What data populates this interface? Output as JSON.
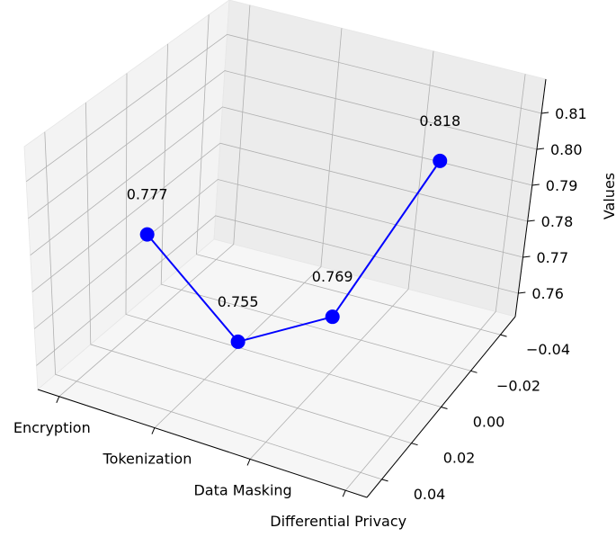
{
  "chart_data": {
    "type": "line",
    "projection": "3d",
    "title": "",
    "xlabel": "",
    "ylabel": "",
    "zlabel": "Values",
    "x_categories": [
      "Encryption",
      "Tokenization",
      "Data Masking",
      "Differential Privacy"
    ],
    "y_ticks": [
      "0.04",
      "0.02",
      "0.00",
      "−0.02",
      "−0.04"
    ],
    "z_ticks": [
      "0.81",
      "0.80",
      "0.79",
      "0.78",
      "0.77",
      "0.76"
    ],
    "series": [
      {
        "x": [
          "Encryption",
          "Tokenization",
          "Data Masking",
          "Differential Privacy"
        ],
        "y": [
          0,
          0,
          0,
          0
        ],
        "z": [
          0.777,
          0.755,
          0.769,
          0.818
        ],
        "labels": [
          "0.777",
          "0.755",
          "0.769",
          "0.818"
        ]
      }
    ],
    "zlim": [
      0.755,
      0.818
    ],
    "ylim": [
      -0.05,
      0.05
    ],
    "colors": {
      "line": "#0000ff",
      "marker": "#0000ff",
      "pane": "#f2f2f2",
      "grid": "#b0b0b0"
    },
    "grid": true,
    "legend": "none"
  }
}
